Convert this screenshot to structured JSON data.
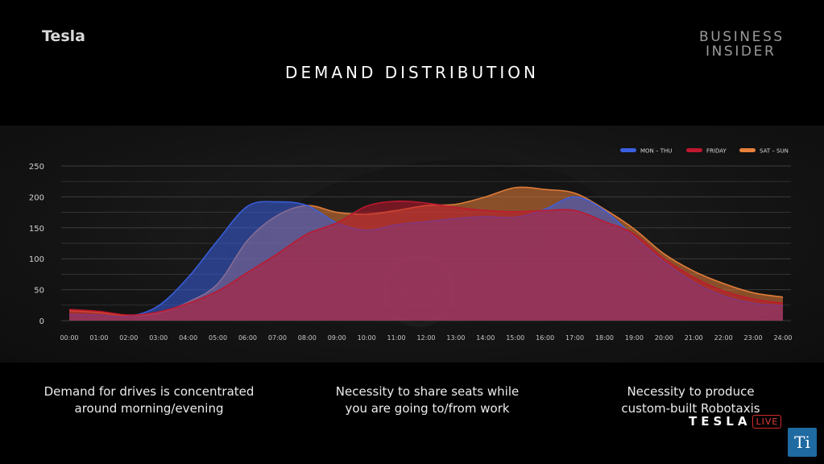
{
  "header": {
    "brand": "Tesla",
    "publisher_line1": "BUSINESS",
    "publisher_line2": "INSIDER",
    "title": "DEMAND DISTRIBUTION"
  },
  "colors": {
    "mon_thu": "#3a5fe0",
    "friday": "#c0182e",
    "sat_sun": "#e8803a",
    "background": "#000000",
    "panel": "#1a1a1a"
  },
  "chart_data": {
    "type": "area",
    "title": "DEMAND DISTRIBUTION",
    "xlabel": "",
    "ylabel": "",
    "x": [
      "00:00",
      "01:00",
      "02:00",
      "03:00",
      "04:00",
      "05:00",
      "06:00",
      "07:00",
      "08:00",
      "09:00",
      "10:00",
      "11:00",
      "12:00",
      "13:00",
      "14:00",
      "15:00",
      "16:00",
      "17:00",
      "18:00",
      "19:00",
      "20:00",
      "21:00",
      "22:00",
      "23:00",
      "24:00"
    ],
    "yticks": [
      0,
      50,
      100,
      150,
      200,
      250
    ],
    "ylim": [
      0,
      250
    ],
    "grid": true,
    "legend_position": "top-right",
    "series": [
      {
        "name": "MON – THU",
        "color": "#3a5fe0",
        "values": [
          10,
          9,
          7,
          24,
          70,
          130,
          185,
          192,
          186,
          158,
          146,
          155,
          160,
          165,
          168,
          167,
          180,
          200,
          178,
          135,
          95,
          62,
          40,
          28,
          24
        ]
      },
      {
        "name": "FRIDAY",
        "color": "#c0182e",
        "values": [
          18,
          15,
          9,
          14,
          28,
          48,
          78,
          108,
          140,
          158,
          185,
          193,
          190,
          183,
          178,
          176,
          178,
          178,
          160,
          140,
          100,
          70,
          48,
          35,
          28
        ]
      },
      {
        "name": "SAT – SUN",
        "color": "#e8803a",
        "values": [
          16,
          13,
          8,
          12,
          30,
          60,
          130,
          170,
          186,
          175,
          172,
          178,
          186,
          188,
          200,
          215,
          212,
          206,
          180,
          148,
          108,
          80,
          60,
          45,
          38
        ]
      }
    ]
  },
  "captions": [
    {
      "line1": "Demand for drives is concentrated",
      "line2": "around morning/evening"
    },
    {
      "line1": "Necessity to share seats while",
      "line2": "you are going to/from work"
    },
    {
      "line1": "Necessity to produce",
      "line2": "custom-built Robotaxis"
    }
  ],
  "overlay": {
    "logo_word": "TESLA",
    "logo_tag": "LIVE",
    "channel_badge": "Ti"
  }
}
